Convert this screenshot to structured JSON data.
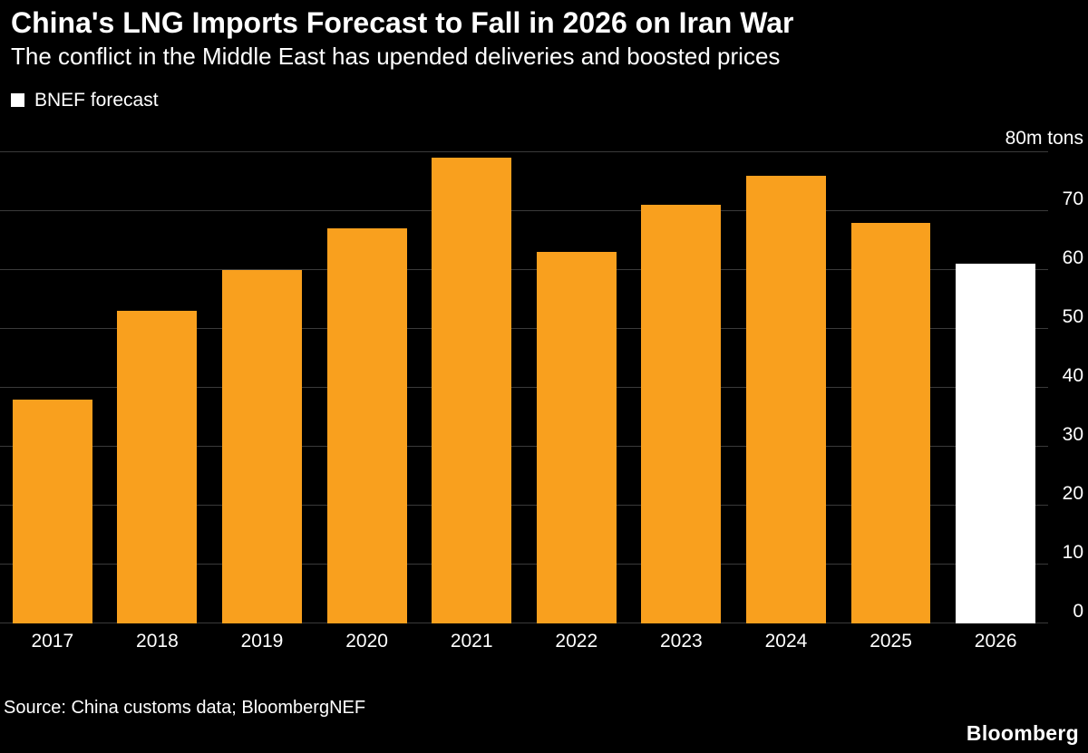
{
  "header": {
    "title": "China's LNG Imports Forecast to Fall in 2026 on Iran War",
    "subtitle": "The conflict in the Middle East has upended deliveries and boosted prices"
  },
  "chart_data": {
    "type": "bar",
    "title": "China's LNG Imports Forecast to Fall in 2026 on Iran War",
    "subtitle": "The conflict in the Middle East has upended deliveries and boosted prices",
    "unit_label": "80m tons",
    "categories": [
      "2017",
      "2018",
      "2019",
      "2020",
      "2021",
      "2022",
      "2023",
      "2024",
      "2025",
      "2026"
    ],
    "values": [
      38,
      53,
      60,
      67,
      79,
      63,
      71,
      76,
      68,
      61
    ],
    "forecast_categories": [
      "2026"
    ],
    "bar_colors": {
      "default": "#f9a01e",
      "forecast": "#ffffff"
    },
    "ylim": [
      0,
      80
    ],
    "yticks": [
      0,
      10,
      20,
      30,
      40,
      50,
      60,
      70
    ],
    "ytick_step": 10,
    "grid": true,
    "gridline_color": "#3a3a3a",
    "background_color": "#000000",
    "legend": [
      {
        "label": "BNEF forecast",
        "color": "#ffffff"
      }
    ],
    "legend_position": "top-left"
  },
  "footer": {
    "source": "Source: China customs data; BloombergNEF",
    "brand": "Bloomberg"
  }
}
